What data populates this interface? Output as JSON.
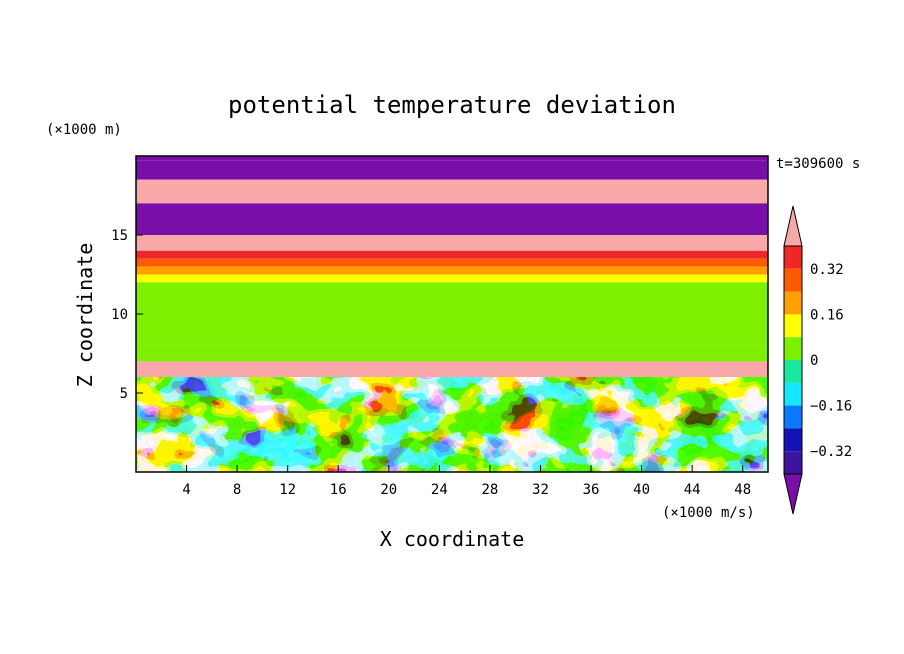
{
  "chart_data": {
    "type": "heatmap",
    "title": "potential temperature deviation",
    "xlabel": "X coordinate",
    "ylabel": "Z coordinate",
    "x_unit": "(×1000 m/s)",
    "y_unit": "(×1000 m)",
    "time_label": "t=309600 s",
    "xlim": [
      0,
      50
    ],
    "ylim": [
      0,
      20
    ],
    "x_ticks": [
      4,
      8,
      12,
      16,
      20,
      24,
      28,
      32,
      36,
      40,
      44,
      48
    ],
    "y_ticks": [
      5,
      10,
      15
    ],
    "colorbar": {
      "levels": [
        -0.4,
        -0.32,
        -0.24,
        -0.16,
        -0.08,
        0,
        0.08,
        0.16,
        0.24,
        0.32,
        0.4
      ],
      "tick_values": [
        0.32,
        0.16,
        0,
        -0.16,
        -0.32
      ],
      "tick_labels": [
        "0.32",
        "0.16",
        "0",
        "−0.16",
        "−0.32"
      ],
      "colors": [
        "#7a0ea8",
        "#3c14a0",
        "#1212b4",
        "#0a7aff",
        "#14e8ff",
        "#18e8a0",
        "#7cf000",
        "#ffff00",
        "#ffa000",
        "#ff5a00",
        "#ee2828",
        "#f8a8a8"
      ],
      "extend": "both"
    },
    "layers": [
      {
        "z_range": [
          18.5,
          19.7
        ],
        "value": -0.44
      },
      {
        "z_range": [
          17.0,
          18.5
        ],
        "value": 0.44
      },
      {
        "z_range": [
          15.0,
          17.0
        ],
        "value": -0.44
      },
      {
        "z_range": [
          14.0,
          15.0
        ],
        "value": 0.44
      },
      {
        "z_range": [
          13.5,
          14.0
        ],
        "value": 0.36
      },
      {
        "z_range": [
          13.0,
          13.5
        ],
        "value": 0.3
      },
      {
        "z_range": [
          12.5,
          13.0
        ],
        "value": 0.2
      },
      {
        "z_range": [
          12.0,
          12.5
        ],
        "value": 0.12
      },
      {
        "z_range": [
          8.0,
          12.0
        ],
        "value": 0.04
      },
      {
        "z_range": [
          7.0,
          8.0
        ],
        "value": 0.04
      },
      {
        "z_range": [
          6.0,
          7.0
        ],
        "value": 0.44
      },
      {
        "z_range": [
          0.0,
          6.0
        ],
        "value": "turbulent"
      }
    ]
  }
}
